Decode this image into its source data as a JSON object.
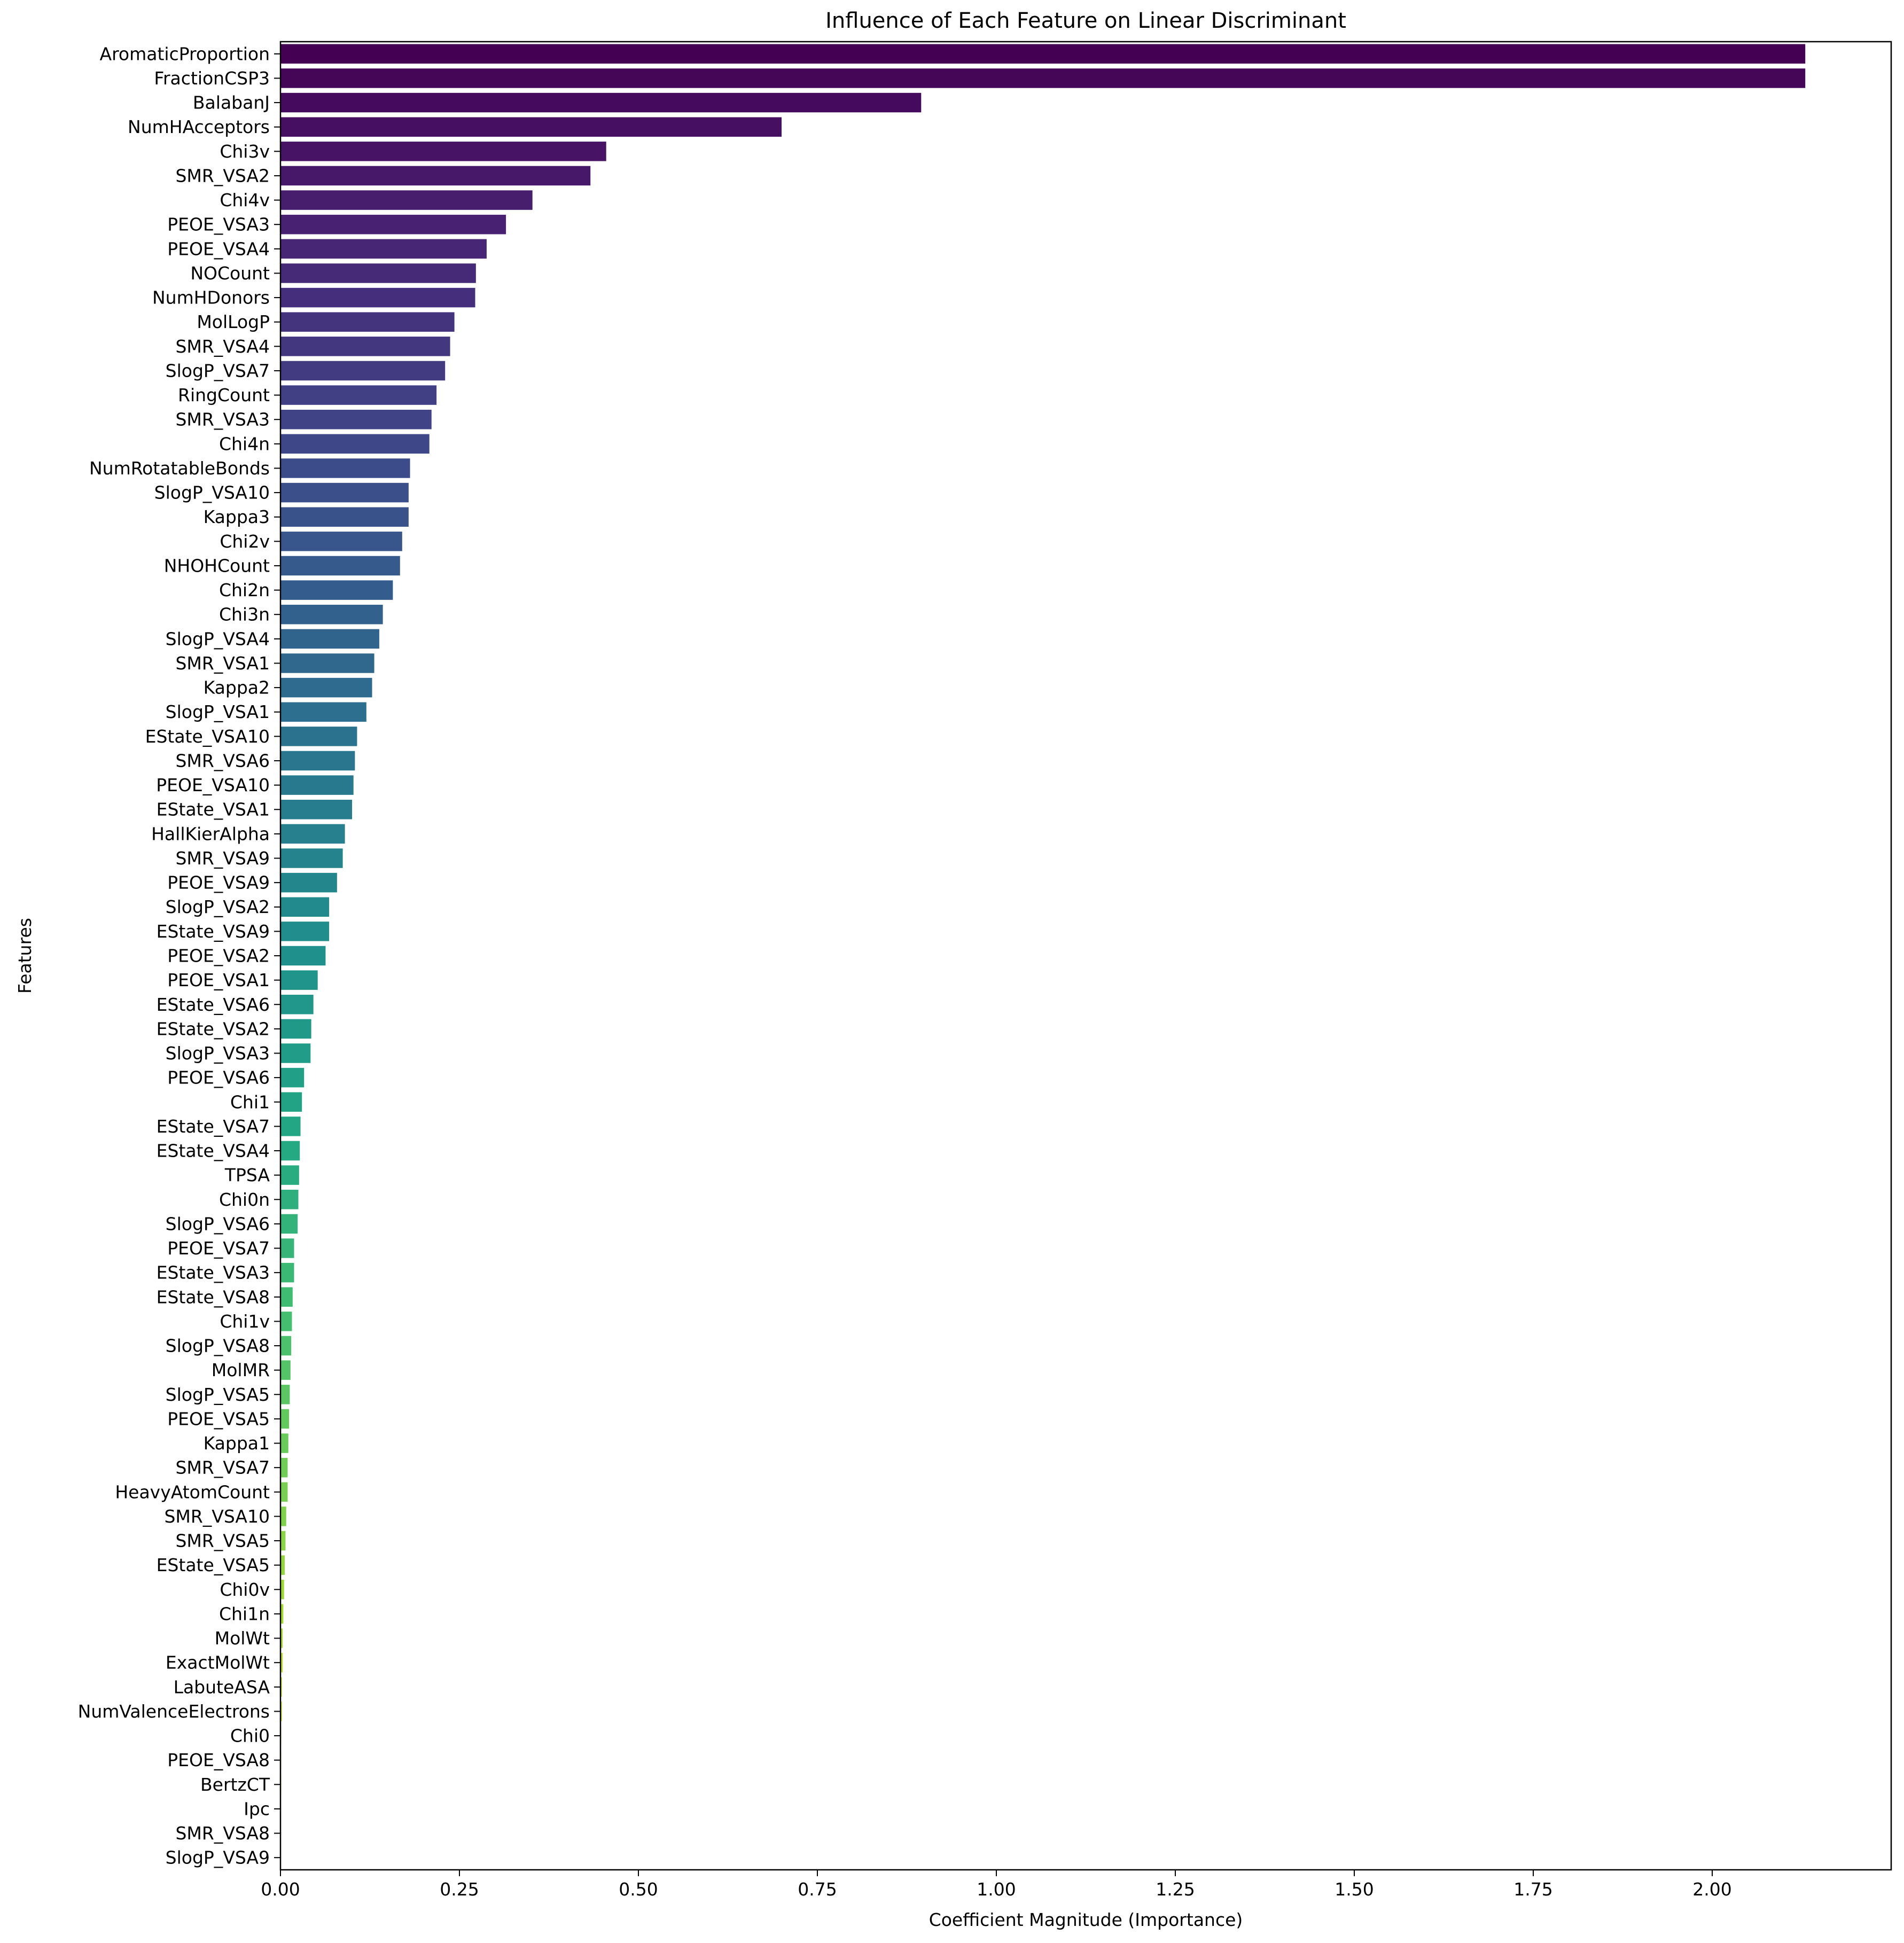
{
  "chart_data": {
    "type": "bar",
    "orientation": "horizontal",
    "title": "Influence of Each Feature on Linear Discriminant",
    "xlabel": "Coefficient Magnitude (Importance)",
    "ylabel": "Features",
    "xlim": [
      0,
      2.25
    ],
    "xticks": [
      "0.00",
      "0.25",
      "0.50",
      "0.75",
      "1.00",
      "1.25",
      "1.50",
      "1.75",
      "2.00"
    ],
    "grid": false,
    "legend": "none",
    "colormap": "viridis",
    "categories": [
      "AromaticProportion",
      "FractionCSP3",
      "BalabanJ",
      "NumHAcceptors",
      "Chi3v",
      "SMR_VSA2",
      "Chi4v",
      "PEOE_VSA3",
      "PEOE_VSA4",
      "NOCount",
      "NumHDonors",
      "MolLogP",
      "SMR_VSA4",
      "SlogP_VSA7",
      "RingCount",
      "SMR_VSA3",
      "Chi4n",
      "NumRotatableBonds",
      "SlogP_VSA10",
      "Kappa3",
      "Chi2v",
      "NHOHCount",
      "Chi2n",
      "Chi3n",
      "SlogP_VSA4",
      "SMR_VSA1",
      "Kappa2",
      "SlogP_VSA1",
      "EState_VSA10",
      "SMR_VSA6",
      "PEOE_VSA10",
      "EState_VSA1",
      "HallKierAlpha",
      "SMR_VSA9",
      "PEOE_VSA9",
      "SlogP_VSA2",
      "EState_VSA9",
      "PEOE_VSA2",
      "PEOE_VSA1",
      "EState_VSA6",
      "EState_VSA2",
      "SlogP_VSA3",
      "PEOE_VSA6",
      "Chi1",
      "EState_VSA7",
      "EState_VSA4",
      "TPSA",
      "Chi0n",
      "SlogP_VSA6",
      "PEOE_VSA7",
      "EState_VSA3",
      "EState_VSA8",
      "Chi1v",
      "SlogP_VSA8",
      "MolMR",
      "SlogP_VSA5",
      "PEOE_VSA5",
      "Kappa1",
      "SMR_VSA7",
      "HeavyAtomCount",
      "SMR_VSA10",
      "SMR_VSA5",
      "EState_VSA5",
      "Chi0v",
      "Chi1n",
      "MolWt",
      "ExactMolWt",
      "LabuteASA",
      "NumValenceElectrons",
      "Chi0",
      "PEOE_VSA8",
      "BertzCT",
      "Ipc",
      "SMR_VSA8",
      "SlogP_VSA9"
    ],
    "values": [
      2.13,
      2.13,
      0.895,
      0.7,
      0.455,
      0.433,
      0.352,
      0.315,
      0.288,
      0.273,
      0.272,
      0.243,
      0.237,
      0.23,
      0.218,
      0.211,
      0.208,
      0.181,
      0.179,
      0.179,
      0.17,
      0.167,
      0.157,
      0.143,
      0.138,
      0.131,
      0.128,
      0.12,
      0.107,
      0.104,
      0.102,
      0.1,
      0.09,
      0.087,
      0.079,
      0.068,
      0.068,
      0.063,
      0.052,
      0.046,
      0.043,
      0.042,
      0.033,
      0.03,
      0.028,
      0.027,
      0.026,
      0.025,
      0.024,
      0.019,
      0.019,
      0.017,
      0.016,
      0.015,
      0.014,
      0.013,
      0.012,
      0.011,
      0.01,
      0.01,
      0.008,
      0.007,
      0.006,
      0.005,
      0.004,
      0.003,
      0.003,
      0.002,
      0.002,
      0.001,
      0.001,
      0.001,
      0.0,
      0.0,
      0.0
    ]
  }
}
